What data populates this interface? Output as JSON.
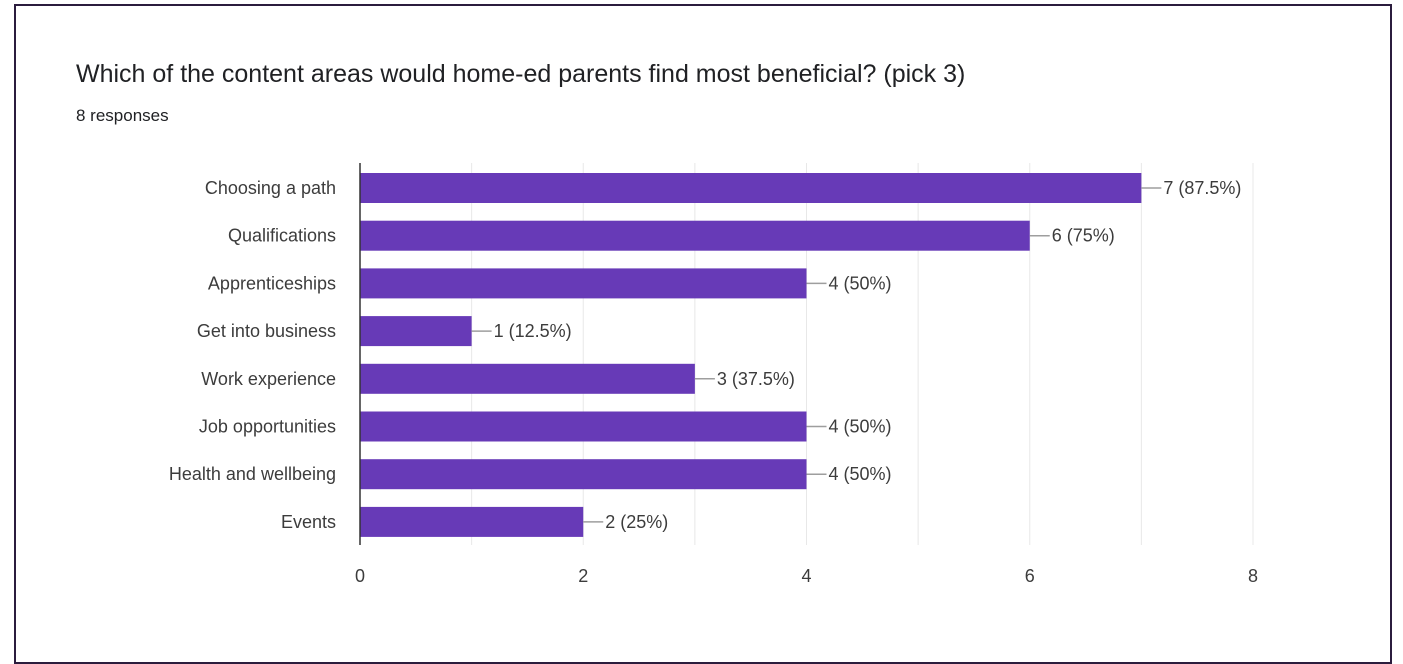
{
  "question": {
    "title": "Which of the content areas would home-ed parents find most beneficial? (pick 3)",
    "responses": "8 responses"
  },
  "colors": {
    "bar": "#673ab7",
    "grid": "#e8e8e8",
    "axis": "#333333",
    "leader": "#9e9e9e",
    "card_border": "#2b1c3d"
  },
  "chart_data": {
    "type": "bar",
    "orientation": "horizontal",
    "categories": [
      "Choosing a path",
      "Qualifications",
      "Apprenticeships",
      "Get into business",
      "Work experience",
      "Job opportunities",
      "Health and wellbeing",
      "Events"
    ],
    "values": [
      7,
      6,
      4,
      1,
      3,
      4,
      4,
      2
    ],
    "data_labels": [
      "7 (87.5%)",
      "6 (75%)",
      "4 (50%)",
      "1 (12.5%)",
      "3 (37.5%)",
      "4 (50%)",
      "4 (50%)",
      "2 (25%)"
    ],
    "xlim": [
      0,
      8
    ],
    "xticks": [
      0,
      2,
      4,
      6,
      8
    ],
    "grid": true,
    "legend": "none"
  }
}
